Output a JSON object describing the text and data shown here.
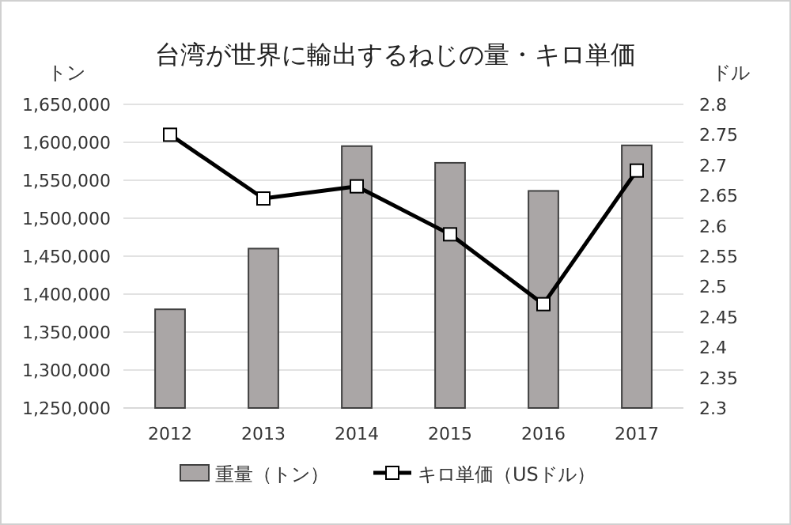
{
  "chart_data": {
    "type": "bar",
    "title": "台湾が世界に輸出するねじの量・キロ単価",
    "ylabel": "トン",
    "y2label": "ドル",
    "categories": [
      "2012",
      "2013",
      "2014",
      "2015",
      "2016",
      "2017"
    ],
    "series": [
      {
        "name": "重量（トン）",
        "color": "#aaa6a6",
        "values": [
          1380000,
          1460000,
          1595000,
          1573000,
          1536000,
          1596000
        ]
      },
      {
        "name": "キロ単価（USドル）",
        "type": "line",
        "axis": "y2",
        "color": "#000000",
        "marker": "square",
        "values": [
          2.75,
          2.645,
          2.665,
          2.586,
          2.471,
          2.691
        ]
      }
    ],
    "ylim": [
      1250000,
      1650000
    ],
    "yticks": [
      {
        "value": 1250000,
        "label": "1,250,000"
      },
      {
        "value": 1300000,
        "label": "1,300,000"
      },
      {
        "value": 1350000,
        "label": "1,350,000"
      },
      {
        "value": 1400000,
        "label": "1,400,000"
      },
      {
        "value": 1450000,
        "label": "1,450,000"
      },
      {
        "value": 1500000,
        "label": "1,500,000"
      },
      {
        "value": 1550000,
        "label": "1,550,000"
      },
      {
        "value": 1600000,
        "label": "1,600,000"
      },
      {
        "value": 1650000,
        "label": "1,650,000"
      }
    ],
    "y2lim": [
      2.3,
      2.8
    ],
    "y2ticks": [
      2.3,
      2.35,
      2.4,
      2.45,
      2.5,
      2.55,
      2.6,
      2.65,
      2.7,
      2.75,
      2.8
    ],
    "grid": "y",
    "legend": "bottom"
  }
}
